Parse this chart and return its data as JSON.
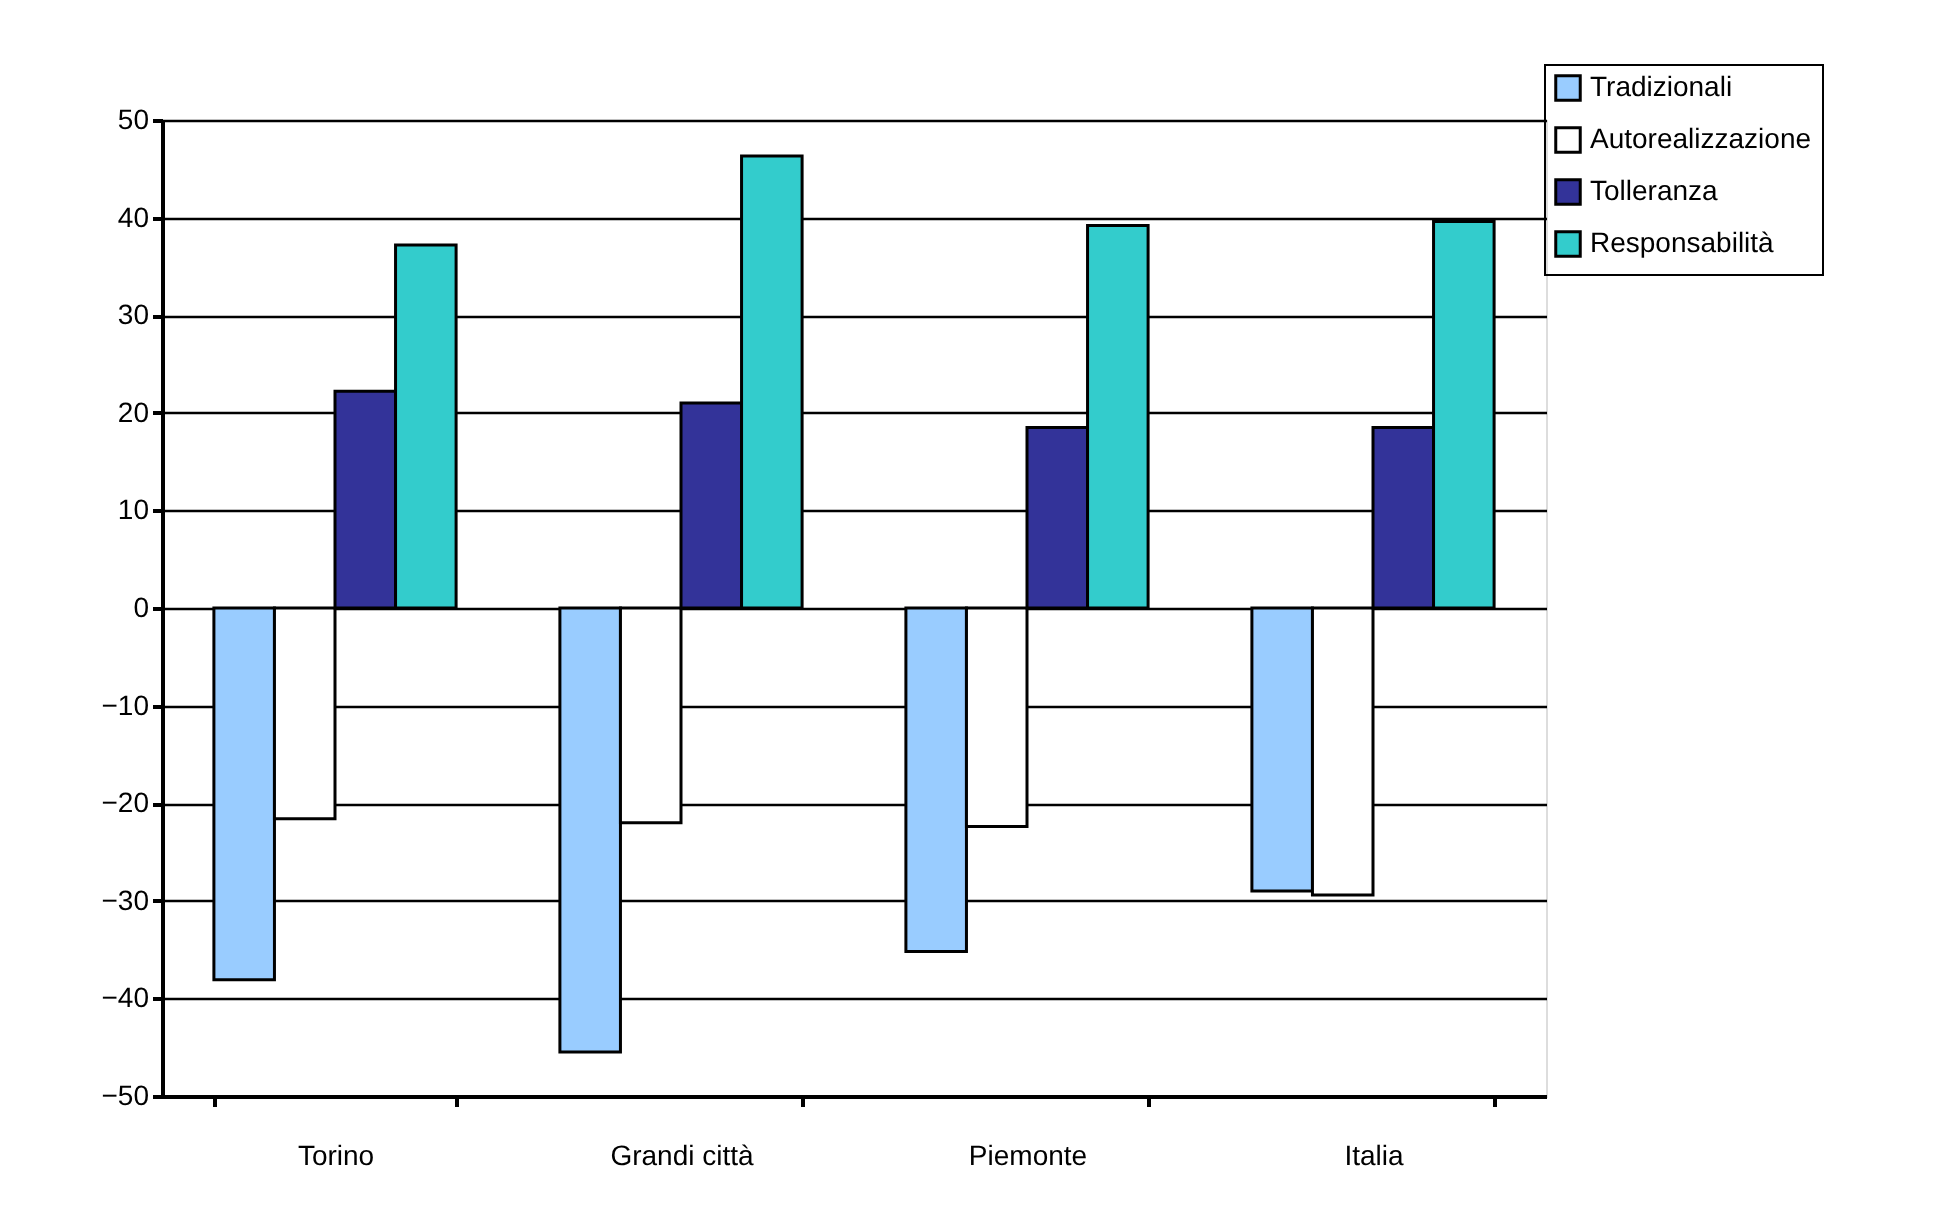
{
  "chart_data": {
    "type": "bar",
    "categories": [
      "Torino",
      "Grandi città",
      "Piemonte",
      "Italia"
    ],
    "series": [
      {
        "name": "Tradizionali",
        "color": "#99ccff",
        "values": [
          -38.1,
          -45.5,
          -35.2,
          -29.0
        ]
      },
      {
        "name": "Autorealizzazione",
        "color": "#ffffff",
        "values": [
          -21.6,
          -22.0,
          -22.4,
          -29.4
        ]
      },
      {
        "name": "Tolleranza",
        "color": "#333399",
        "values": [
          22.2,
          21.0,
          18.5,
          18.5
        ]
      },
      {
        "name": "Responsabilità",
        "color": "#33cccc",
        "values": [
          37.2,
          46.3,
          39.2,
          39.6
        ]
      }
    ],
    "ylim": [
      -50,
      50
    ],
    "yticks": [
      -50,
      -40,
      -30,
      -20,
      -10,
      0,
      10,
      20,
      30,
      40,
      50
    ],
    "grid": "y",
    "legend": "top right"
  }
}
